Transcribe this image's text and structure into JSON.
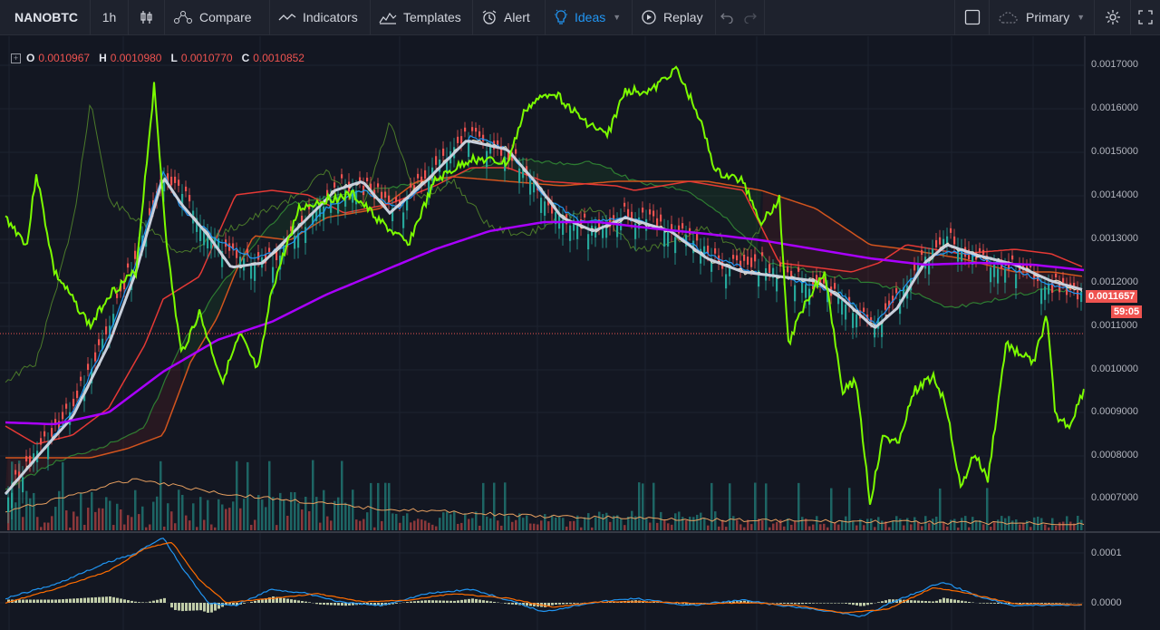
{
  "toolbar": {
    "symbol": "NANOBTC",
    "interval": "1h",
    "compare": "Compare",
    "indicators": "Indicators",
    "templates": "Templates",
    "alert": "Alert",
    "ideas": "Ideas",
    "replay": "Replay",
    "layout": "Primary"
  },
  "legend": {
    "o_label": "O",
    "o_value": "0.0010967",
    "h_label": "H",
    "h_value": "0.0010980",
    "l_label": "L",
    "l_value": "0.0010770",
    "c_label": "C",
    "c_value": "0.0010852"
  },
  "price_axis": {
    "ticks": [
      "0.0017000",
      "0.0016000",
      "0.0015000",
      "0.0014000",
      "0.0013000",
      "0.0012000",
      "0.0011000",
      "0.0010000",
      "0.0009000",
      "0.0008000",
      "0.0007000"
    ],
    "last_price": "0.0011657",
    "countdown": "59:05"
  },
  "macd_axis": {
    "ticks": [
      "0.0001",
      "0.0000"
    ]
  },
  "colors": {
    "background": "#131722",
    "candle_up": "#26a69a",
    "candle_down": "#ef5350",
    "rsi_line": "#7cfc00",
    "ma_long": "#aa00ff",
    "ma_fast": "#c9d0dc",
    "price_line": "#ef5350"
  }
}
